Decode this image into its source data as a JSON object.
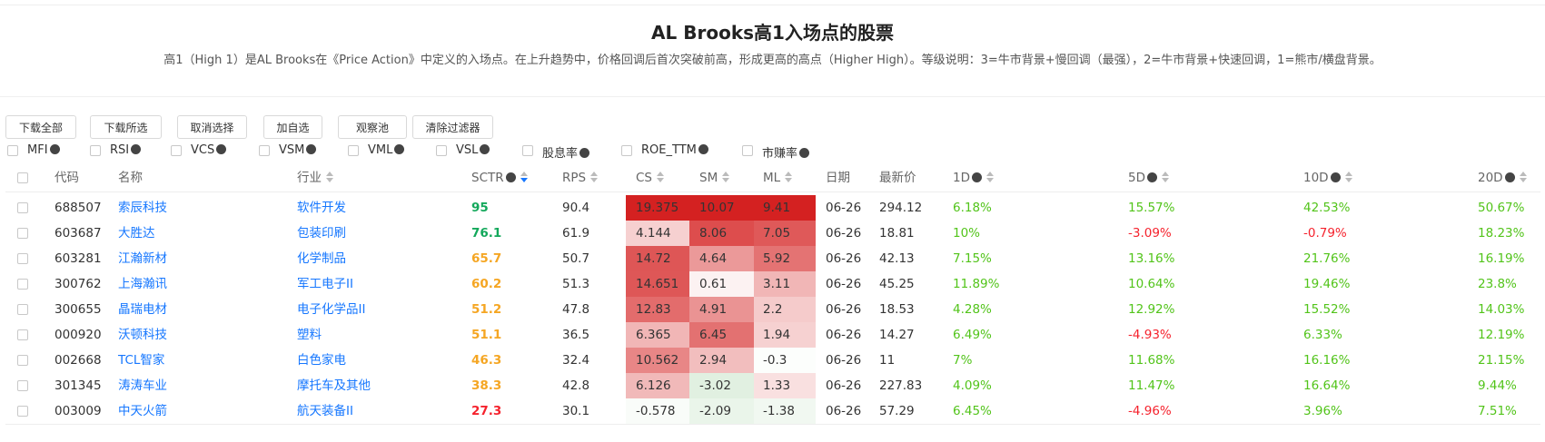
{
  "header": {
    "title": "AL Brooks高1入场点的股票",
    "description": "高1（High 1）是AL Brooks在《Price Action》中定义的入场点。在上升趋势中，价格回调后首次突破前高，形成更高的高点（Higher High）。等级说明：3=牛市背景+慢回调（最强），2=牛市背景+快速回调，1=熊市/横盘背景。"
  },
  "toolbar": {
    "buttons": [
      "下载全部",
      "下载所选",
      "取消选择",
      "加自选",
      "观察池",
      "清除过滤器"
    ]
  },
  "filters": [
    "MFI",
    "RSI",
    "VCS",
    "VSM",
    "VML",
    "VSL",
    "股息率",
    "ROE_TTM",
    "市赚率"
  ],
  "table": {
    "columns": [
      "代码",
      "名称",
      "行业",
      "SCTR",
      "RPS",
      "CS",
      "SM",
      "ML",
      "日期",
      "最新价",
      "1D",
      "5D",
      "10D",
      "20D"
    ],
    "rows": [
      [
        "688507",
        "索辰科技",
        "软件开发",
        "95",
        "90.4",
        "19.375",
        "10.07",
        "9.41",
        "06-26",
        "294.12",
        "6.18%",
        "15.57%",
        "42.53%",
        "50.67%"
      ],
      [
        "603687",
        "大胜达",
        "包装印刷",
        "76.1",
        "61.9",
        "4.144",
        "8.06",
        "7.05",
        "06-26",
        "18.81",
        "10%",
        "-3.09%",
        "-0.79%",
        "18.23%"
      ],
      [
        "603281",
        "江瀚新材",
        "化学制品",
        "65.7",
        "50.7",
        "14.72",
        "4.64",
        "5.92",
        "06-26",
        "42.13",
        "7.15%",
        "13.16%",
        "21.76%",
        "16.19%"
      ],
      [
        "300762",
        "上海瀚讯",
        "军工电子II",
        "60.2",
        "51.3",
        "14.651",
        "0.61",
        "3.11",
        "06-26",
        "45.25",
        "11.89%",
        "10.64%",
        "19.46%",
        "23.8%"
      ],
      [
        "300655",
        "晶瑞电材",
        "电子化学品II",
        "51.2",
        "47.8",
        "12.83",
        "4.91",
        "2.2",
        "06-26",
        "18.53",
        "4.28%",
        "12.92%",
        "15.52%",
        "14.03%"
      ],
      [
        "000920",
        "沃顿科技",
        "塑料",
        "51.1",
        "36.5",
        "6.365",
        "6.45",
        "1.94",
        "06-26",
        "14.27",
        "6.49%",
        "-4.93%",
        "6.33%",
        "12.19%"
      ],
      [
        "002668",
        "TCL智家",
        "白色家电",
        "46.3",
        "32.4",
        "10.562",
        "2.94",
        "-0.3",
        "06-26",
        "11",
        "7%",
        "11.68%",
        "16.16%",
        "21.15%"
      ],
      [
        "301345",
        "涛涛车业",
        "摩托车及其他",
        "38.3",
        "42.8",
        "6.126",
        "-3.02",
        "1.33",
        "06-26",
        "227.83",
        "4.09%",
        "11.47%",
        "16.64%",
        "9.44%"
      ],
      [
        "003009",
        "中天火箭",
        "航天装备II",
        "27.3",
        "30.1",
        "-0.578",
        "-2.09",
        "-1.38",
        "06-26",
        "57.29",
        "6.45%",
        "-4.96%",
        "3.96%",
        "7.51%"
      ]
    ]
  }
}
